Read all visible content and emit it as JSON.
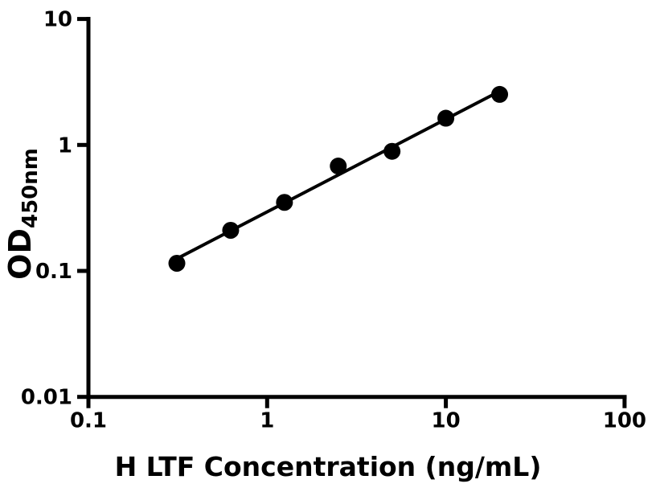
{
  "figure": {
    "background_color": "#ffffff",
    "ink_color": "#000000"
  },
  "chart_data": {
    "type": "scatter",
    "title": "",
    "xlabel": "H LTF Concentration (ng/mL)",
    "ylabel": "OD",
    "ylabel_subscript": "450nm",
    "x_scale": "log",
    "y_scale": "log",
    "xlim": [
      0.1,
      100
    ],
    "ylim": [
      0.01,
      10
    ],
    "grid": false,
    "legend": "none",
    "x_ticks": [
      {
        "value": 0.1,
        "label": "0.1"
      },
      {
        "value": 1,
        "label": "1"
      },
      {
        "value": 10,
        "label": "10"
      },
      {
        "value": 100,
        "label": "100"
      }
    ],
    "y_ticks": [
      {
        "value": 10,
        "label": "10"
      },
      {
        "value": 1,
        "label": "1"
      },
      {
        "value": 0.1,
        "label": "0.1"
      },
      {
        "value": 0.01,
        "label": "0.01"
      }
    ],
    "series": [
      {
        "marker": "filled-circle",
        "color": "#000000",
        "points": [
          {
            "x": 0.3125,
            "y": 0.115
          },
          {
            "x": 0.625,
            "y": 0.21
          },
          {
            "x": 1.25,
            "y": 0.35
          },
          {
            "x": 2.5,
            "y": 0.68
          },
          {
            "x": 5,
            "y": 0.89
          },
          {
            "x": 10,
            "y": 1.63
          },
          {
            "x": 20,
            "y": 2.52
          }
        ]
      }
    ],
    "fit_line": {
      "x1": 0.3125,
      "y1": 0.125,
      "x2": 20,
      "y2": 2.67
    }
  }
}
